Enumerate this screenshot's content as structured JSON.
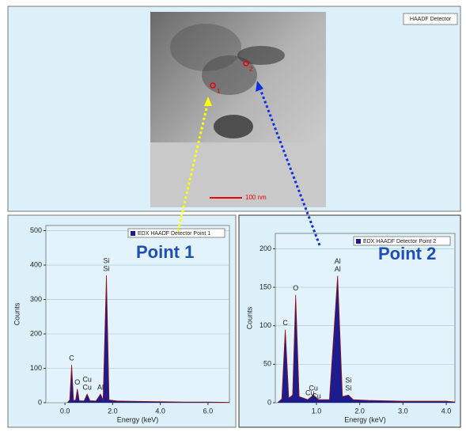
{
  "image_panel": {
    "detector_label": "HAADF Detector",
    "scale_bar": "100 nm",
    "markers": [
      "1",
      "2"
    ]
  },
  "callouts": [
    "Point 1",
    "Point 2"
  ],
  "chart_data": [
    {
      "type": "line",
      "x_label": "Energy (keV)",
      "y_label": "Counts",
      "xlim": [
        -0.8,
        6.9
      ],
      "ylim": [
        0,
        515
      ],
      "xticks": [
        {
          "value": 0,
          "label": "0.0"
        },
        {
          "value": 2,
          "label": "2.0"
        },
        {
          "value": 4,
          "label": "4.0"
        },
        {
          "value": 6,
          "label": "6.0"
        }
      ],
      "yticks": [
        0,
        100,
        200,
        300,
        400,
        500
      ],
      "grid": true,
      "legend": "upper right",
      "series": [
        {
          "name": "EDX HAADF Detector Point 1",
          "color": "#1c1c8f",
          "x": [
            0.1,
            0.2,
            0.28,
            0.36,
            0.45,
            0.52,
            0.6,
            0.8,
            0.93,
            1.05,
            1.3,
            1.49,
            1.6,
            1.74,
            1.85,
            2.2,
            3.0,
            4.0,
            5.0,
            6.0,
            6.9
          ],
          "values": [
            0,
            8,
            110,
            6,
            8,
            40,
            6,
            5,
            25,
            6,
            5,
            25,
            8,
            370,
            8,
            5,
            4,
            3,
            2,
            2,
            1
          ]
        }
      ],
      "annotations": [
        {
          "text": "C",
          "x": 0.28
        },
        {
          "text": "O",
          "x": 0.52
        },
        {
          "text": "Cu",
          "x": 0.93
        },
        {
          "text": "Cu",
          "x": 0.93
        },
        {
          "text": "Al",
          "x": 1.49
        },
        {
          "text": "Si",
          "x": 1.74
        },
        {
          "text": "Si",
          "x": 1.74
        }
      ]
    },
    {
      "type": "line",
      "x_label": "Energy (keV)",
      "y_label": "Counts",
      "xlim": [
        0.05,
        4.2
      ],
      "ylim": [
        0,
        220
      ],
      "xticks": [
        {
          "value": 1,
          "label": "1.0"
        },
        {
          "value": 2,
          "label": "2.0"
        },
        {
          "value": 3,
          "label": "3.0"
        },
        {
          "value": 4,
          "label": "4.0"
        }
      ],
      "yticks": [
        0,
        50,
        100,
        150,
        200
      ],
      "grid": true,
      "legend": "upper right",
      "series": [
        {
          "name": "EDX HAADF Detector Point 2",
          "color": "#1c1c8f",
          "x": [
            0.1,
            0.2,
            0.28,
            0.36,
            0.45,
            0.52,
            0.6,
            0.8,
            0.93,
            1.05,
            1.3,
            1.49,
            1.6,
            1.74,
            1.85,
            2.2,
            3.0,
            4.0,
            4.2
          ],
          "values": [
            0,
            5,
            95,
            6,
            10,
            140,
            8,
            4,
            10,
            4,
            4,
            165,
            8,
            10,
            4,
            3,
            2,
            2,
            1
          ]
        }
      ],
      "annotations": [
        {
          "text": "C",
          "x": 0.28
        },
        {
          "text": "O",
          "x": 0.52
        },
        {
          "text": "Cu",
          "x": 0.85
        },
        {
          "text": "Cu",
          "x": 1.0
        },
        {
          "text": "Cu",
          "x": 0.93
        },
        {
          "text": "Al",
          "x": 1.49
        },
        {
          "text": "Al",
          "x": 1.49
        },
        {
          "text": "Si",
          "x": 1.74
        },
        {
          "text": "Si",
          "x": 1.74
        }
      ]
    }
  ]
}
